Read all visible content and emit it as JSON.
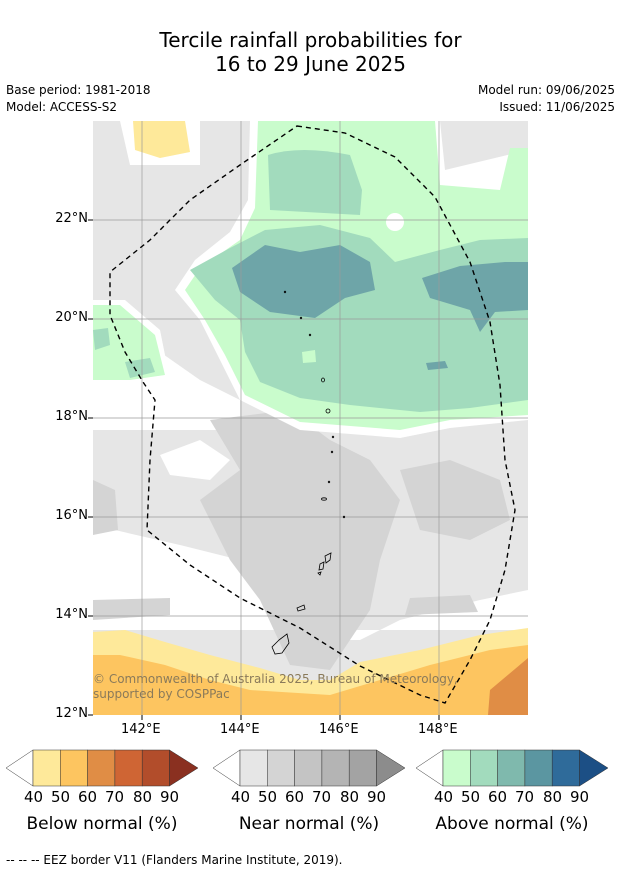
{
  "title_line1": "Tercile rainfall probabilities for",
  "title_line2": "16 to 29 June 2025",
  "base_period": "Base period: 1981-2018",
  "model": "Model: ACCESS-S2",
  "model_run": "Model run: 09/06/2025",
  "issued": "Issued: 11/06/2025",
  "copyright": "© Commonwealth of Australia 2025, Bureau of Meteorology, supported by COSPPac",
  "footnote": "--  --  -- EEZ border V11 (Flanders Marine Institute, 2019).",
  "lat_labels": [
    "22°N",
    "20°N",
    "18°N",
    "16°N",
    "14°N",
    "12°N"
  ],
  "lon_labels": [
    "142°E",
    "144°E",
    "146°E",
    "148°E"
  ],
  "colorbars": [
    {
      "title": "Below normal (%)",
      "ticks": [
        "40",
        "50",
        "60",
        "70",
        "80",
        "90"
      ],
      "colors": [
        "#ffffff",
        "#fee99a",
        "#fdc560",
        "#e08d45",
        "#cf6534",
        "#b24d2b",
        "#8a3020"
      ]
    },
    {
      "title": "Near normal (%)",
      "ticks": [
        "40",
        "50",
        "60",
        "70",
        "80",
        "90"
      ],
      "colors": [
        "#ffffff",
        "#e6e6e6",
        "#d4d4d4",
        "#c4c4c4",
        "#b4b4b4",
        "#a3a3a3",
        "#8c8c8c"
      ]
    },
    {
      "title": "Above normal (%)",
      "ticks": [
        "40",
        "50",
        "60",
        "70",
        "80",
        "90"
      ],
      "colors": [
        "#ffffff",
        "#c9fccc",
        "#a2dbbd",
        "#7fb9ad",
        "#5b96a1",
        "#2f6b9a",
        "#1c4f85"
      ]
    }
  ]
}
